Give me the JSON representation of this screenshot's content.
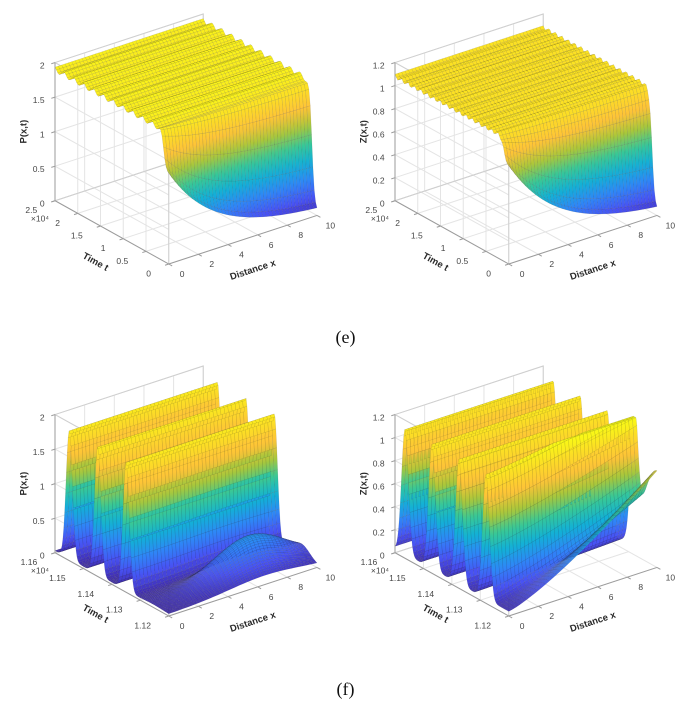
{
  "figure": {
    "background": "#ffffff",
    "captions": {
      "row1": "(e)",
      "row2": "(f)"
    }
  },
  "colors": {
    "grid_line": "#e4e4e4",
    "pane_edge": "#cfcfcf",
    "axis_line": "#9b9b9b",
    "tick_text": "#474747",
    "label_text": "#2b2b2b",
    "mesh_edge": "rgba(40,40,40,0.22)",
    "colormap_name": "parula",
    "colormap_stops": [
      [
        0.0,
        62,
        38,
        168
      ],
      [
        0.127,
        72,
        82,
        244
      ],
      [
        0.254,
        46,
        135,
        247
      ],
      [
        0.381,
        18,
        177,
        214
      ],
      [
        0.508,
        55,
        200,
        151
      ],
      [
        0.635,
        171,
        199,
        57
      ],
      [
        0.762,
        254,
        195,
        56
      ],
      [
        0.889,
        252,
        222,
        37
      ],
      [
        1.0,
        249,
        251,
        21
      ]
    ]
  },
  "chart_data": [
    {
      "type": "surface",
      "panel": "e-left",
      "zlabel": "P(x,t)",
      "xlabel": "Distance x",
      "ylabel": "Time t",
      "x_range": [
        0,
        10
      ],
      "x_ticks": [
        0,
        2,
        4,
        6,
        8,
        10
      ],
      "x_tick_labels": [
        "0",
        "2",
        "4",
        "6",
        "8",
        "10"
      ],
      "t_range": [
        0,
        25000
      ],
      "t_ticks": [
        0,
        5000,
        10000,
        15000,
        20000,
        25000
      ],
      "t_tick_labels": [
        "0",
        "0.5",
        "1",
        "1.5",
        "2",
        "2.5"
      ],
      "t_multiplier_label": "×10⁴",
      "z_range": [
        0,
        2
      ],
      "z_ticks": [
        0,
        0.5,
        1,
        1.5,
        2
      ],
      "z_tick_labels": [
        "0",
        "0.5",
        "1",
        "1.5",
        "2"
      ],
      "view": {
        "azimuth": -37.5,
        "elevation": 30
      },
      "grid": true,
      "description": "Prey density P(x,t) for 0 <= t <= 2.5e4: after a brief transient (initial profile decaying in x, tail visible near t=0, x=10) the solution saturates to a nearly uniform plateau of about 1.9.",
      "model": {
        "kind": "plateau",
        "plateau": 1.9,
        "onset_t": 1100,
        "onset_width": 300,
        "initial_amp": 1.3,
        "initial_decay": 0.3,
        "ripple_amp": 0.04,
        "ripple_period": 55,
        "grid_res": [
          44,
          84
        ]
      }
    },
    {
      "type": "surface",
      "panel": "e-right",
      "zlabel": "Z(x,t)",
      "xlabel": "Distance x",
      "ylabel": "Time t",
      "x_range": [
        0,
        10
      ],
      "x_ticks": [
        0,
        2,
        4,
        6,
        8,
        10
      ],
      "x_tick_labels": [
        "0",
        "2",
        "4",
        "6",
        "8",
        "10"
      ],
      "t_range": [
        0,
        25000
      ],
      "t_ticks": [
        0,
        5000,
        10000,
        15000,
        20000,
        25000
      ],
      "t_tick_labels": [
        "0",
        "0.5",
        "1",
        "1.5",
        "2",
        "2.5"
      ],
      "t_multiplier_label": "×10⁴",
      "z_range": [
        0,
        1.2
      ],
      "z_ticks": [
        0,
        0.2,
        0.4,
        0.6,
        0.8,
        1,
        1.2
      ],
      "z_tick_labels": [
        "0",
        "0.2",
        "0.4",
        "0.6",
        "0.8",
        "1",
        "1.2"
      ],
      "view": {
        "azimuth": -37.5,
        "elevation": 30
      },
      "grid": true,
      "description": "Predator density Z(x,t) for 0 <= t <= 2.5e4: short transient with decaying tail toward x=10, then a nearly uniform plateau of about 1.08.",
      "model": {
        "kind": "plateau",
        "plateau": 1.08,
        "onset_t": 1100,
        "onset_width": 300,
        "initial_amp": 0.85,
        "initial_decay": 0.28,
        "ripple_amp": 0.02,
        "ripple_period": 60,
        "grid_res": [
          44,
          84
        ]
      }
    },
    {
      "type": "surface",
      "panel": "f-left",
      "zlabel": "P(x,t)",
      "xlabel": "Distance x",
      "ylabel": "Time t",
      "x_range": [
        0,
        10
      ],
      "x_ticks": [
        0,
        2,
        4,
        6,
        8,
        10
      ],
      "x_tick_labels": [
        "0",
        "2",
        "4",
        "6",
        "8",
        "10"
      ],
      "t_range": [
        11200,
        11600
      ],
      "t_ticks": [
        11200,
        11300,
        11400,
        11500,
        11600
      ],
      "t_tick_labels": [
        "1.12",
        "1.13",
        "1.14",
        "1.15",
        "1.16"
      ],
      "t_multiplier_label": "×10⁴",
      "z_range": [
        0,
        2
      ],
      "z_ticks": [
        0,
        0.5,
        1,
        1.5,
        2
      ],
      "z_tick_labels": [
        "0",
        "0.5",
        "1",
        "1.5",
        "2"
      ],
      "view": {
        "azimuth": -37.5,
        "elevation": 30
      },
      "grid": true,
      "description": "Zoomed window 1.12e4 <= t <= 1.16e4: P(x,t) shows periodic spike ridges (period about 100) reaching about 1.9, separated by deep valleys near 0, plus a low smooth hump (about 0.55) centered near x=6.5 at the front of the window.",
      "model": {
        "kind": "pulses",
        "valley": 0.03,
        "pulses": [
          {
            "t": 11255,
            "sigma": 30,
            "amp": 0.55,
            "x_gauss": [
              6.5,
              2.4
            ]
          },
          {
            "t": 11350,
            "sigma": 11,
            "amp": 1.85
          },
          {
            "t": 11450,
            "sigma": 11,
            "amp": 1.85
          },
          {
            "t": 11550,
            "sigma": 11,
            "amp": 1.85
          }
        ],
        "grid_res": [
          40,
          130
        ]
      }
    },
    {
      "type": "surface",
      "panel": "f-right",
      "zlabel": "Z(x,t)",
      "xlabel": "Distance x",
      "ylabel": "Time t",
      "x_range": [
        0,
        10
      ],
      "x_ticks": [
        0,
        2,
        4,
        6,
        8,
        10
      ],
      "x_tick_labels": [
        "0",
        "2",
        "4",
        "6",
        "8",
        "10"
      ],
      "t_range": [
        11200,
        11600
      ],
      "t_ticks": [
        11200,
        11300,
        11400,
        11500,
        11600
      ],
      "t_tick_labels": [
        "1.12",
        "1.13",
        "1.14",
        "1.15",
        "1.16"
      ],
      "t_multiplier_label": "×10⁴",
      "z_range": [
        0,
        1.2
      ],
      "z_ticks": [
        0,
        0.2,
        0.4,
        0.6,
        0.8,
        1,
        1.2
      ],
      "z_tick_labels": [
        "0",
        "0.2",
        "0.4",
        "0.6",
        "0.8",
        "1",
        "1.2"
      ],
      "view": {
        "azimuth": -37.5,
        "elevation": 30
      },
      "grid": true,
      "description": "Zoomed window 1.12e4 <= t <= 1.16e4: Z(x,t) shows four periodic spike ridges (period about 95) reaching about 1.12, with a front sheet rising in x from about 0 at x=0 to about 0.85 at x=10.",
      "model": {
        "kind": "pulses",
        "valley": 0.04,
        "pulses": [
          {
            "t": 11200,
            "sigma": 50,
            "amp": 0.8,
            "x_pow": 1.3
          },
          {
            "t": 11280,
            "sigma": 12,
            "amp": 1.08
          },
          {
            "t": 11375,
            "sigma": 12,
            "amp": 1.08
          },
          {
            "t": 11470,
            "sigma": 12,
            "amp": 1.08
          },
          {
            "t": 11565,
            "sigma": 12,
            "amp": 1.08
          }
        ],
        "grid_res": [
          40,
          130
        ]
      }
    }
  ]
}
